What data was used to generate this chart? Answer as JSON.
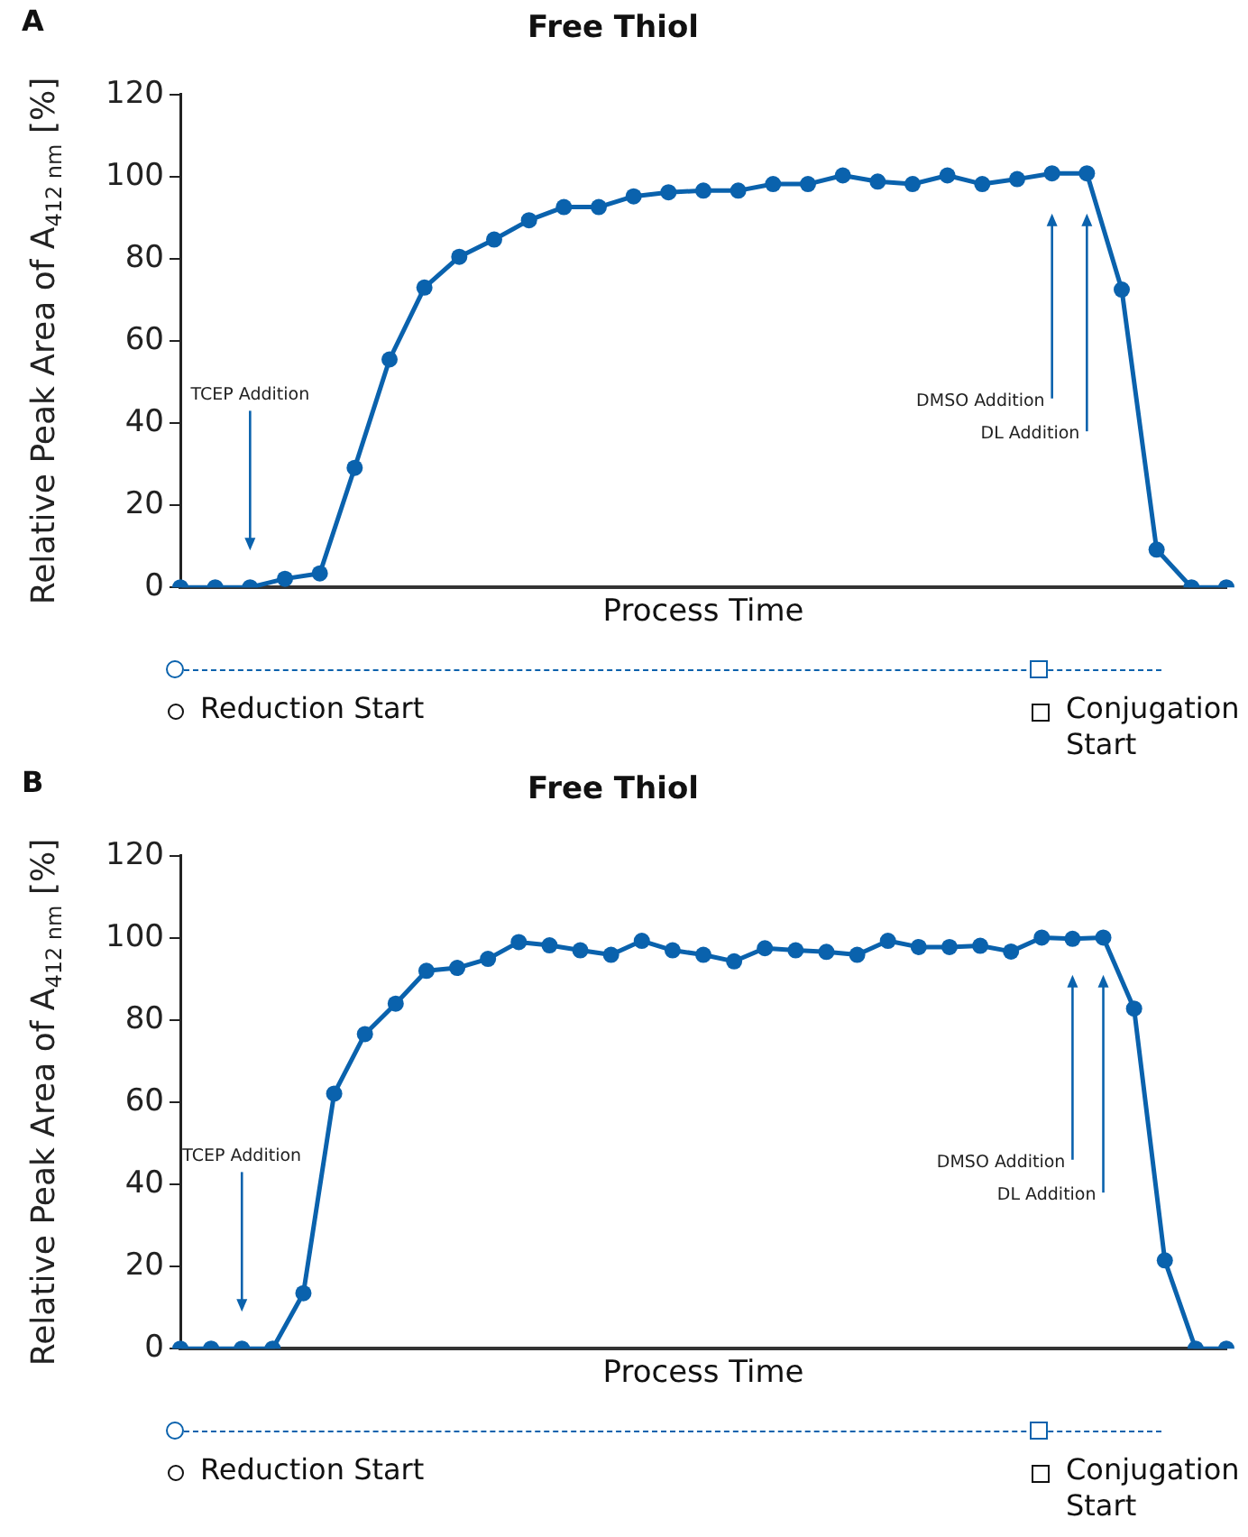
{
  "chart_data": [
    {
      "type": "line",
      "title": "Free Thiol",
      "xlabel": "Process Time",
      "ylabel": "Relative Peak Area of A$_{412 nm}$ [%]",
      "annotations": [
        "A",
        "TCEP Addition",
        "DMSO Addition",
        "DL Addition",
        "Reduction Start",
        "Conjugation Start"
      ],
      "categories": [
        null,
        null,
        null,
        null,
        null,
        null,
        null,
        null,
        null,
        null,
        null,
        null,
        null,
        null,
        null,
        null,
        null,
        null,
        null,
        null,
        null,
        null,
        null,
        null,
        null,
        null,
        null,
        null,
        null,
        null,
        null
      ],
      "series": [
        {
          "color": "#0a62ad",
          "values": [
            0,
            0,
            0,
            2.1,
            3.4,
            29.1,
            55.5,
            73,
            80.5,
            84.7,
            89.4,
            92.6,
            92.6,
            95.2,
            96.2,
            96.6,
            96.6,
            98.2,
            98.2,
            100.3,
            98.8,
            98.2,
            100.3,
            98.2,
            99.4,
            100.8,
            100.8,
            72.5,
            9.2,
            0,
            0
          ]
        }
      ],
      "ylim": [
        0,
        120
      ],
      "yticks": [
        0,
        20,
        40,
        60,
        80,
        100,
        120
      ],
      "grid": false,
      "legend": false,
      "marker": "circle",
      "line_style": "solid",
      "tick_labels": "y"
    },
    {
      "type": "line",
      "title": "Free Thiol",
      "xlabel": "Process Time",
      "ylabel": "Relative Peak Area of A$_{412 nm}$ [%]",
      "annotations": [
        "B",
        "TCEP Addition",
        "DMSO Addition",
        "DL Addition",
        "Reduction Start",
        "Conjugation Start"
      ],
      "categories": [
        null,
        null,
        null,
        null,
        null,
        null,
        null,
        null,
        null,
        null,
        null,
        null,
        null,
        null,
        null,
        null,
        null,
        null,
        null,
        null,
        null,
        null,
        null,
        null,
        null,
        null,
        null,
        null,
        null,
        null,
        null,
        null,
        null,
        null,
        null
      ],
      "series": [
        {
          "color": "#0a62ad",
          "values": [
            0,
            0,
            0,
            0,
            13.5,
            62.1,
            76.6,
            84,
            92,
            92.7,
            94.9,
            99,
            98.2,
            97,
            95.9,
            99.3,
            97,
            95.9,
            94.3,
            97.5,
            97,
            96.6,
            95.9,
            99.3,
            97.8,
            97.8,
            98.1,
            96.7,
            100.1,
            99.8,
            100.1,
            82.8,
            21.5,
            0,
            0
          ]
        }
      ],
      "ylim": [
        0,
        120
      ],
      "yticks": [
        0,
        20,
        40,
        60,
        80,
        100,
        120
      ],
      "grid": false,
      "legend": false,
      "marker": "circle",
      "line_style": "solid",
      "tick_labels": "y"
    }
  ]
}
